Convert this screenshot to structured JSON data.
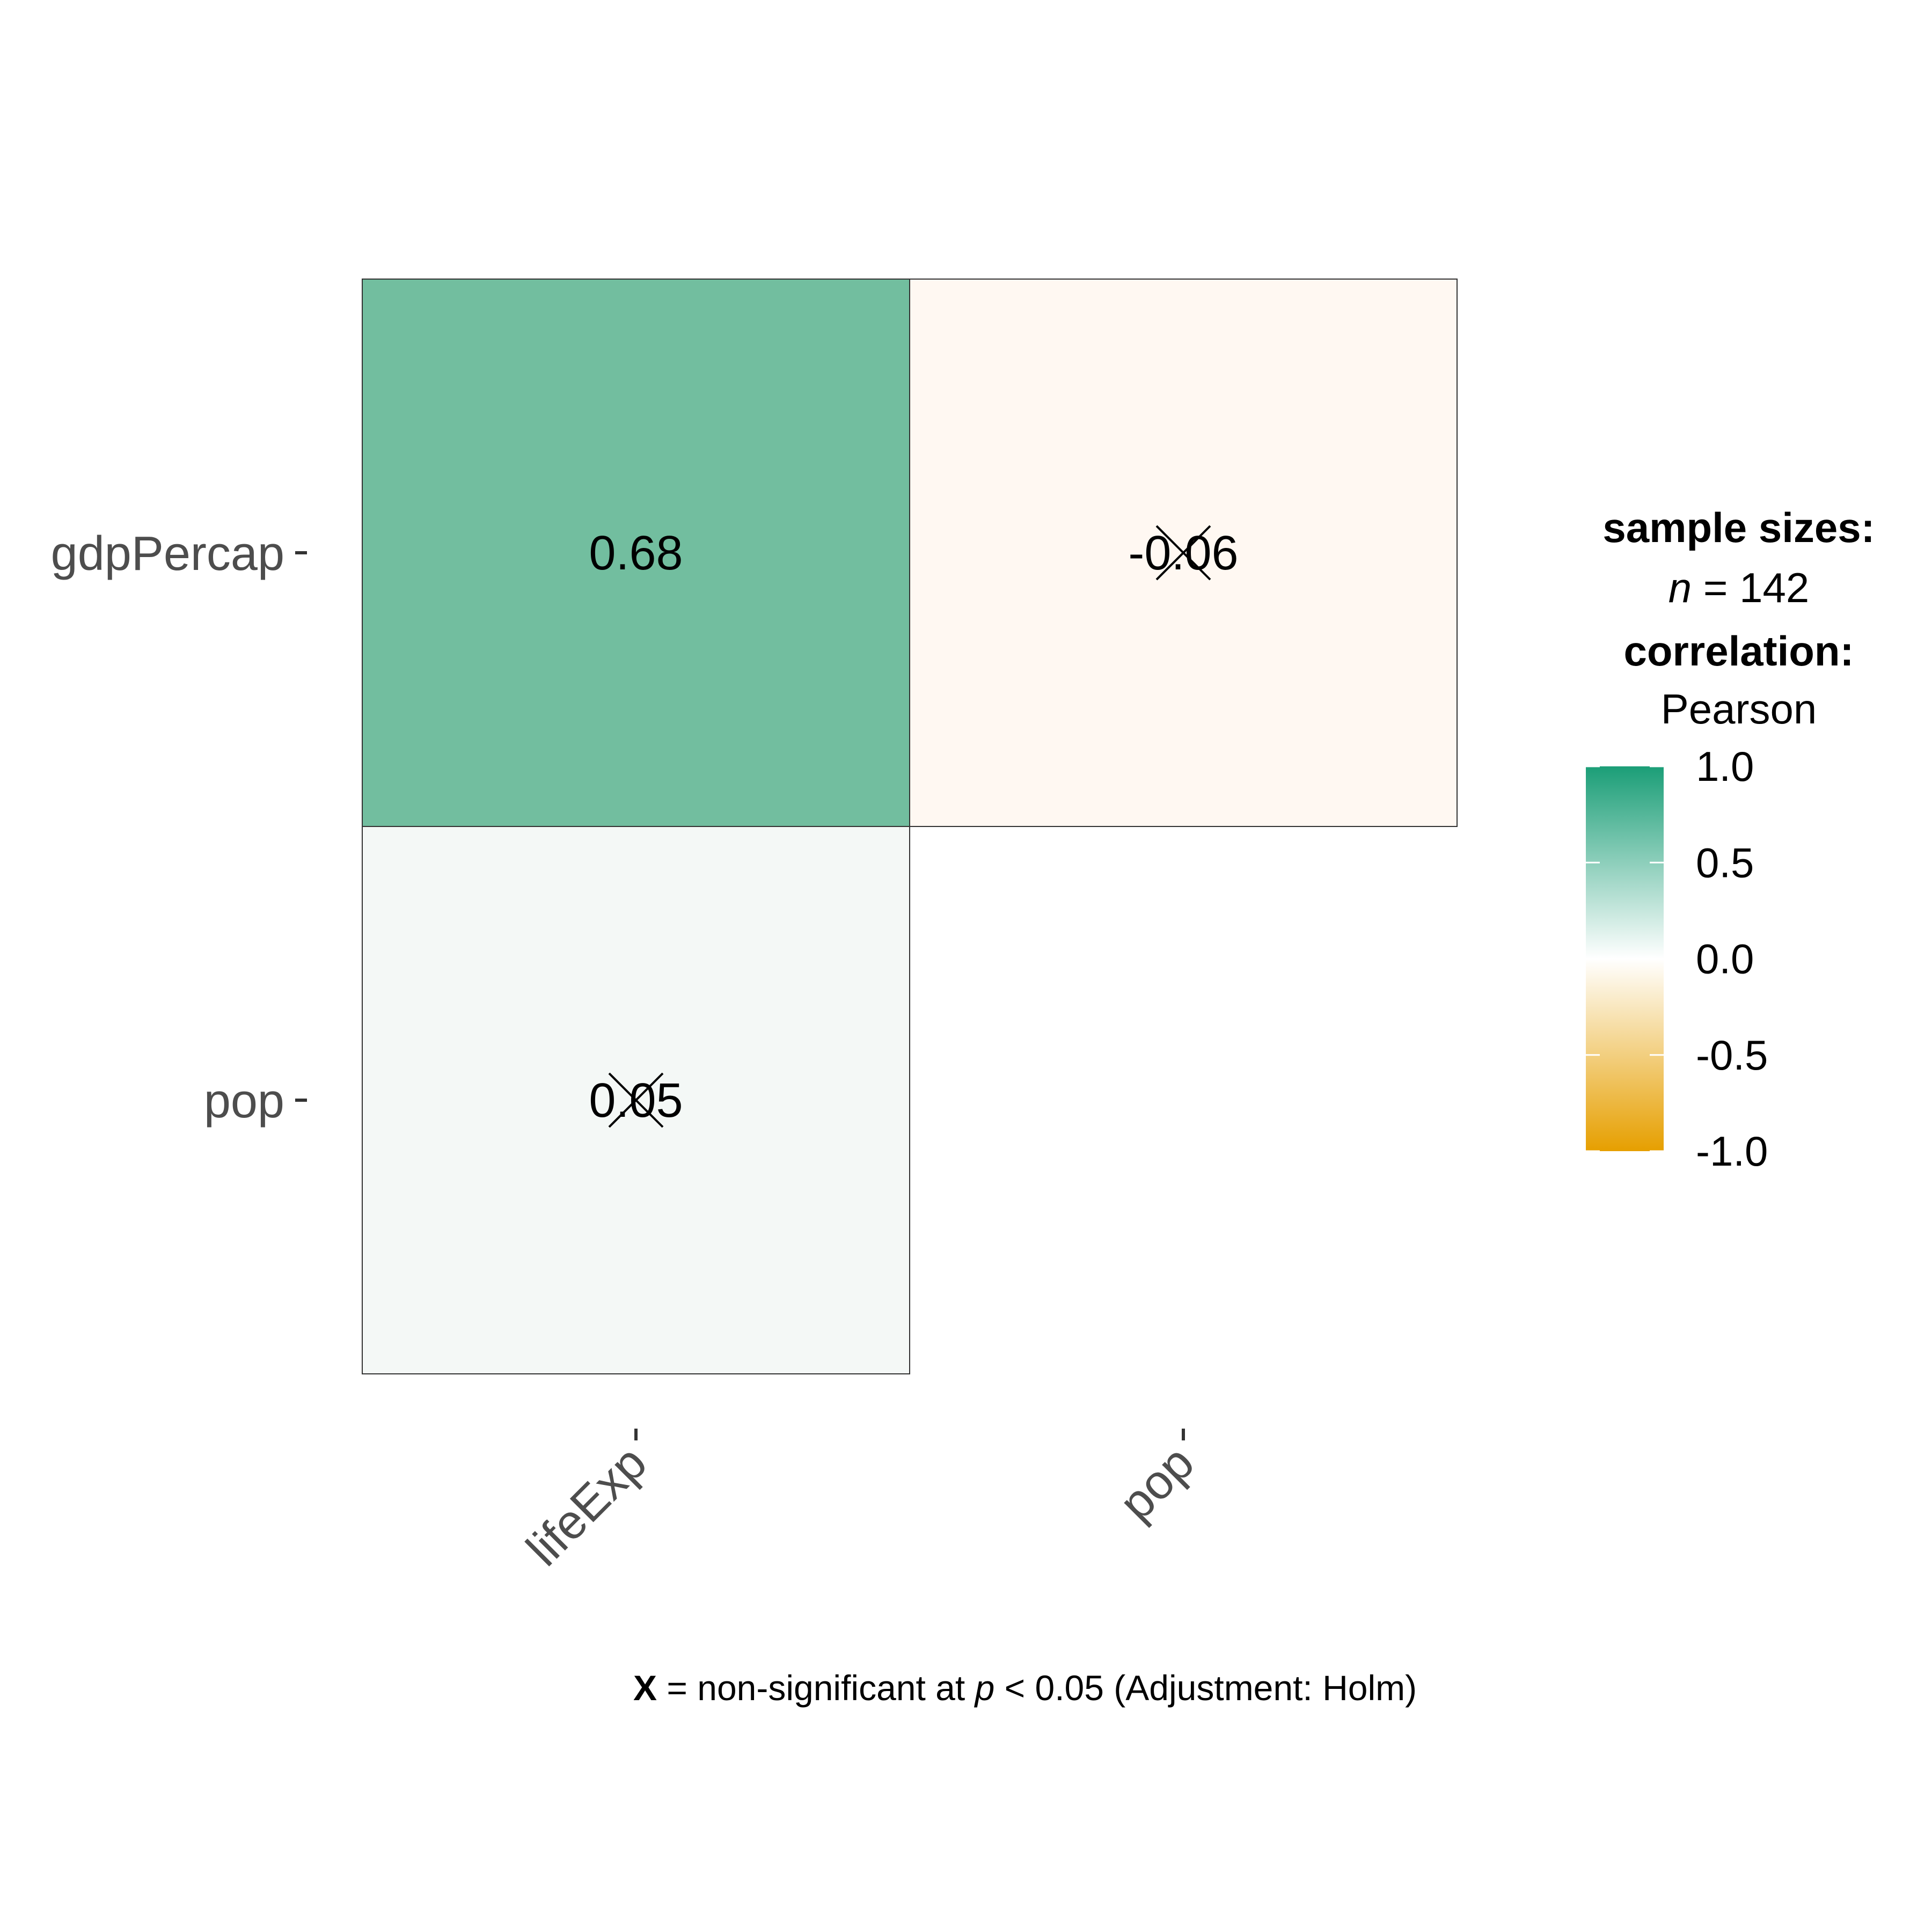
{
  "chart_data": {
    "type": "heatmap",
    "x_categories": [
      "lifeExp",
      "pop"
    ],
    "y_categories": [
      "gdpPercap",
      "pop"
    ],
    "cells": [
      {
        "x": "lifeExp",
        "y": "gdpPercap",
        "value": 0.68,
        "label": "0.68",
        "significant": true,
        "fill": "#72BE9F"
      },
      {
        "x": "pop",
        "y": "gdpPercap",
        "value": -0.06,
        "label": "-0.06",
        "significant": false,
        "fill": "#FFF8F2"
      },
      {
        "x": "lifeExp",
        "y": "pop",
        "value": 0.05,
        "label": "0.05",
        "significant": false,
        "fill": "#F4F8F6"
      }
    ],
    "legend": {
      "sample_title": "sample sizes:",
      "n_symbol": "n",
      "n_text": " = 142",
      "corr_title": "correlation:",
      "corr_method": "Pearson",
      "range": [
        -1.0,
        1.0
      ],
      "ticks": [
        "1.0",
        "0.5",
        "0.0",
        "-0.5",
        "-1.0"
      ],
      "tick_values": [
        1.0,
        0.5,
        0.0,
        -0.5,
        -1.0
      ],
      "colors": {
        "high": "#1B9E77",
        "mid": "#FFFFFF",
        "low": "#E69F00"
      },
      "placement": "right"
    },
    "caption": {
      "symbol": "X",
      "text1": " = non-significant at ",
      "p": "p",
      "text2": " < 0.05 (Adjustment: Holm)"
    },
    "grid": false
  }
}
